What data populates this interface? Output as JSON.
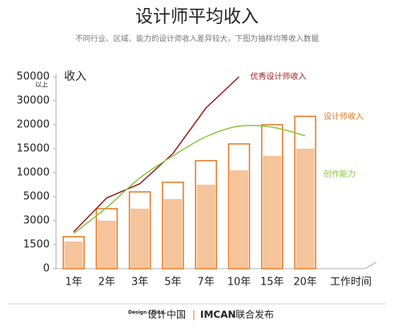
{
  "chart_data": {
    "type": "bar-line",
    "title": "设计师平均收入",
    "subtitle": "不同行业、区域、能力的设计师收入差异较大，下图为抽样均等收入数据",
    "y_label": "收入",
    "x_label": "工作时间",
    "ytick_note": "以上",
    "categories": [
      "1年",
      "2年",
      "3年",
      "5年",
      "7年",
      "10年",
      "15年",
      "20年"
    ],
    "yticks": [
      0,
      1500,
      3000,
      5000,
      10000,
      15000,
      20000,
      30000,
      50000
    ],
    "ylim": [
      0,
      50000
    ],
    "series": [
      {
        "name": "设计师收入",
        "kind": "bar",
        "color": "#e8761e",
        "fill_color": "#f6c49b",
        "values": [
          2000,
          4000,
          6000,
          8000,
          12500,
          16000,
          20000,
          23500
        ],
        "fill_values": [
          1700,
          3000,
          4000,
          4800,
          7500,
          10500,
          13500,
          15000
        ]
      },
      {
        "name": "优秀设计师收入",
        "kind": "line",
        "color": "#9b1b1e",
        "values": [
          2300,
          4900,
          7700,
          14000,
          27000,
          50000,
          null,
          null
        ]
      },
      {
        "name": "创作能力",
        "kind": "curve",
        "color": "#8cc63f",
        "values": [
          2200,
          4100,
          8900,
          13500,
          17500,
          19700,
          19500,
          17700
        ]
      }
    ],
    "footer": {
      "brand_small": "Design China",
      "brand": "设计中国",
      "separator": "|",
      "partner": "IMCAN",
      "text": "联合发布"
    }
  }
}
